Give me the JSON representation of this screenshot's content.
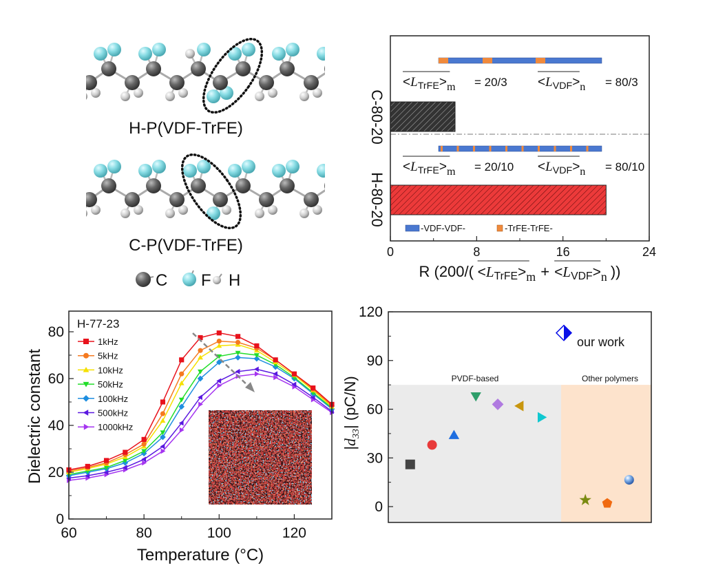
{
  "panel_a": {
    "chains": [
      {
        "label": "H-P(VDF-TrFE)"
      },
      {
        "label": "C-P(VDF-TrFE)"
      }
    ],
    "atom_legend": [
      {
        "symbol": "C",
        "color": "#5a5a5a"
      },
      {
        "symbol": "F",
        "color": "#86dbe3"
      },
      {
        "symbol": "H",
        "color": "#d8d8d8"
      }
    ]
  },
  "chart_data": [
    {
      "type": "bar",
      "orientation": "horizontal",
      "categories": [
        "C-80-20",
        "H-80-20"
      ],
      "values": [
        6,
        20
      ],
      "colors": [
        "#333333",
        "#e8282b"
      ],
      "xlim": [
        0,
        24
      ],
      "xticks": [
        "0",
        "8",
        "16",
        "24"
      ],
      "xlabel": {
        "prefix": "R (200/(",
        "plus": "+",
        "suffix": "))"
      },
      "symbols": {
        "lt": "<",
        "L": "L",
        "gt": ">",
        "sub_trfe": "TrFE",
        "sub_vdf": "VDF",
        "m": "m",
        "n": "n"
      },
      "annotations": [
        {
          "category": "C-80-20",
          "trfe_value": "= 20/3",
          "vdf_value": "= 80/3",
          "trfe_blocks": 3
        },
        {
          "category": "H-80-20",
          "trfe_value": "= 20/10",
          "vdf_value": "= 80/10",
          "trfe_blocks": 10
        }
      ],
      "legend": [
        {
          "label": "-VDF-VDF-",
          "color": "#4a78d0"
        },
        {
          "label": "-TrFE-TrFE-",
          "color": "#f08a3c"
        }
      ],
      "grid": false
    },
    {
      "type": "line",
      "title": "H-77-23",
      "xlabel": "Temperature (°C)",
      "ylabel": "Dielectric constant",
      "xlim": [
        60,
        130
      ],
      "ylim": [
        0,
        89
      ],
      "xticks": [
        "60",
        "80",
        "100",
        "120"
      ],
      "yticks": [
        "0",
        "20",
        "40",
        "60",
        "80"
      ],
      "x": [
        60,
        65,
        70,
        75,
        80,
        85,
        90,
        95,
        100,
        105,
        110,
        115,
        120,
        125,
        130
      ],
      "series": [
        {
          "name": "1kHz",
          "color": "#e8121c",
          "marker": "square",
          "values": [
            21,
            22.5,
            25,
            28.5,
            34,
            50,
            68,
            77.5,
            79.5,
            78,
            74,
            68,
            62,
            56,
            49
          ]
        },
        {
          "name": "5kHz",
          "color": "#f57a20",
          "marker": "circle",
          "values": [
            20.5,
            22,
            24,
            27.5,
            32,
            45,
            62,
            72,
            76,
            75.5,
            73,
            68,
            62,
            55.5,
            48.5
          ]
        },
        {
          "name": "10kHz",
          "color": "#f5e000",
          "marker": "triangle-up",
          "values": [
            20,
            21.5,
            23.5,
            26.5,
            31,
            42,
            58,
            69,
            74,
            74.5,
            72,
            67,
            61.5,
            55,
            48
          ]
        },
        {
          "name": "50kHz",
          "color": "#22dd2a",
          "marker": "triangle-down",
          "values": [
            19,
            20.5,
            22,
            25,
            29,
            37,
            51,
            63,
            69.5,
            71,
            70,
            66,
            60.5,
            54,
            47.5
          ]
        },
        {
          "name": "100kHz",
          "color": "#1e8ee0",
          "marker": "diamond",
          "values": [
            18.5,
            20,
            21.5,
            24,
            28,
            35,
            48,
            60,
            67,
            69,
            68.5,
            65,
            60,
            53.5,
            47
          ]
        },
        {
          "name": "500kHz",
          "color": "#5a18e0",
          "marker": "triangle-left",
          "values": [
            17.5,
            18.5,
            20,
            22,
            25.5,
            31,
            41,
            52,
            59,
            63,
            64,
            62,
            57.5,
            52,
            46
          ]
        },
        {
          "name": "1000kHz",
          "color": "#a535f0",
          "marker": "triangle-right",
          "values": [
            16.5,
            17.5,
            19,
            21,
            24,
            29,
            38,
            49,
            57,
            61,
            62,
            60.5,
            56.5,
            51,
            45.5
          ]
        }
      ],
      "legend_position": "top-left",
      "grid": false
    },
    {
      "type": "scatter",
      "ylabel": {
        "prefix": "|",
        "d": "d",
        "sub": "33",
        "suffix": "| (pC/N)"
      },
      "ylim": [
        -10,
        120
      ],
      "yticks": [
        "0",
        "30",
        "60",
        "90",
        "120"
      ],
      "regions": [
        {
          "label": "PVDF-based",
          "color": "#ebebeb",
          "ymax": 75
        },
        {
          "label": "Other polymers",
          "color": "#fde3cc",
          "ymax": 75
        }
      ],
      "points": [
        {
          "order": 1,
          "y": 26,
          "marker": "square",
          "color": "#444444",
          "region": "PVDF-based"
        },
        {
          "order": 2,
          "y": 38,
          "marker": "circle",
          "color": "#e83a3a",
          "region": "PVDF-based"
        },
        {
          "order": 3,
          "y": 44,
          "marker": "triangle-up",
          "color": "#1e6ee0",
          "region": "PVDF-based"
        },
        {
          "order": 4,
          "y": 68,
          "marker": "triangle-down",
          "color": "#2e9e6a",
          "region": "PVDF-based"
        },
        {
          "order": 5,
          "y": 63,
          "marker": "diamond",
          "color": "#b07ae0",
          "region": "PVDF-based"
        },
        {
          "order": 6,
          "y": 62,
          "marker": "triangle-left",
          "color": "#c8960e",
          "region": "PVDF-based"
        },
        {
          "order": 7,
          "y": 55,
          "marker": "triangle-right",
          "color": "#10c8d0",
          "region": "PVDF-based"
        },
        {
          "order": 9,
          "y": 4,
          "marker": "star",
          "color": "#7a8a10",
          "region": "Other polymers"
        },
        {
          "order": 10,
          "y": 2,
          "marker": "pentagon",
          "color": "#f06a10",
          "region": "Other polymers"
        },
        {
          "order": 11,
          "y": 16.5,
          "marker": "sphere",
          "color": "#5a9ae0",
          "region": "Other polymers"
        }
      ],
      "highlight": {
        "label": "our work",
        "y": 107,
        "marker": "half-diamond",
        "color": "#0a10e8"
      },
      "grid": false
    }
  ]
}
